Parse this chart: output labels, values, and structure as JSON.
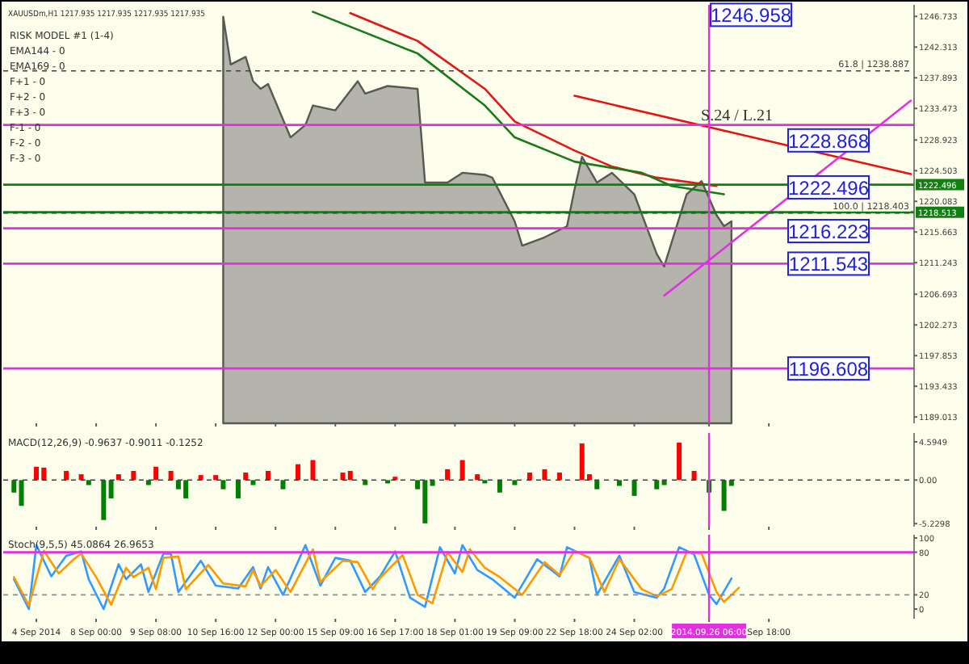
{
  "chart_data": [
    {
      "type": "area",
      "title": "XAUUSDm,H1  1217.935 1217.935 1217.935 1217.935",
      "ylim": [
        1188.1,
        1248.4
      ],
      "tick_labels": "y",
      "categories": [
        null,
        null,
        null,
        null,
        "4 Sep 2014",
        null,
        null,
        null,
        null,
        null,
        null,
        null,
        "8 Sep 00:00",
        null,
        null,
        null,
        null,
        null,
        null,
        null,
        "9 Sep 08:00",
        null,
        null,
        null,
        null,
        null,
        null,
        null,
        "10 Sep 16:00",
        null,
        null,
        null,
        null,
        null,
        null,
        null,
        "12 Sep 00:00",
        null,
        null,
        null,
        null,
        null,
        null,
        null,
        "15 Sep 09:00",
        null,
        null,
        null,
        null,
        null,
        null,
        null,
        "16 Sep 17:00",
        null,
        null,
        null,
        null,
        null,
        null,
        null,
        "18 Sep 01:00",
        null,
        null,
        null,
        null,
        null,
        null,
        null,
        "19 Sep 09:00",
        null,
        null,
        null,
        null,
        null,
        null,
        null,
        "22 Sep 18:00",
        null,
        null,
        null,
        null,
        null,
        null,
        null,
        "24 Sep 02:00",
        null,
        null,
        null,
        null,
        null,
        null,
        null,
        null,
        null,
        "2014.09.26 06:00",
        null,
        null,
        null,
        null,
        null,
        null,
        null,
        "Sep 18:00",
        null,
        null,
        null,
        null,
        null,
        null,
        null,
        null,
        null,
        null,
        null,
        null,
        null,
        null,
        null,
        null,
        null,
        null,
        null
      ],
      "yticks": [
        1246.733,
        1242.313,
        1237.893,
        1233.473,
        1228.923,
        1224.503,
        1220.083,
        1215.663,
        1211.243,
        1206.693,
        1202.273,
        1197.853,
        1193.433,
        1189.013
      ],
      "series": [
        {
          "color": "#b4b4ac",
          "values": [
            null,
            null,
            null,
            null,
            null,
            null,
            null,
            null,
            null,
            null,
            null,
            null,
            null,
            null,
            null,
            null,
            null,
            null,
            null,
            null,
            null,
            null,
            null,
            null,
            null,
            null,
            null,
            null,
            null,
            1246.7,
            1239.8,
            null,
            1240.9,
            1237.4,
            1236.3,
            1237.0,
            null,
            null,
            1229.3,
            null,
            1231.1,
            1233.9,
            null,
            null,
            1233.2,
            null,
            null,
            1237.4,
            1235.6,
            null,
            null,
            1236.7,
            null,
            null,
            null,
            1236.3,
            1222.8,
            null,
            null,
            1222.8,
            null,
            1224.2,
            null,
            null,
            1223.9,
            1223.5,
            null,
            null,
            1217.2,
            1213.7,
            null,
            null,
            1214.9,
            null,
            null,
            1216.5,
            1221.8,
            1226.5,
            null,
            1222.8,
            null,
            1224.2,
            null,
            null,
            1221.1,
            null,
            null,
            1212.5,
            1210.7,
            1214.2,
            null,
            1221.1,
            null,
            1223.0,
            null,
            1218.1,
            1216.5,
            1217.2,
            null,
            null,
            null,
            null,
            null,
            null,
            null,
            null,
            null,
            null,
            null,
            null,
            null,
            null,
            null,
            null,
            null,
            null,
            null,
            null,
            null,
            null,
            null,
            null
          ]
        },
        {
          "type": "line",
          "color": "#e01818",
          "values": [
            null,
            null,
            null,
            null,
            null,
            null,
            null,
            null,
            null,
            null,
            null,
            null,
            null,
            null,
            null,
            null,
            null,
            null,
            null,
            null,
            null,
            null,
            null,
            null,
            null,
            null,
            null,
            null,
            null,
            null,
            null,
            null,
            null,
            null,
            null,
            null,
            null,
            null,
            null,
            null,
            null,
            null,
            null,
            null,
            null,
            null,
            1247.2,
            null,
            null,
            null,
            null,
            null,
            null,
            null,
            null,
            1243.2,
            null,
            null,
            null,
            null,
            null,
            null,
            null,
            null,
            1236.3,
            null,
            null,
            null,
            1231.6,
            null,
            null,
            null,
            null,
            null,
            null,
            null,
            1227.4,
            null,
            null,
            null,
            null,
            1225.1,
            null,
            null,
            null,
            null,
            null,
            1223.5,
            null,
            null,
            null,
            null,
            null,
            null,
            null,
            1222.3,
            null,
            null,
            null,
            null,
            null,
            null,
            null,
            null,
            null,
            null,
            null,
            null,
            null,
            null,
            null,
            null,
            null,
            null,
            null,
            null,
            null,
            null,
            null,
            null,
            null,
            null
          ]
        },
        {
          "type": "line",
          "color": "#1a7a1a",
          "values": [
            null,
            null,
            null,
            null,
            null,
            null,
            null,
            null,
            null,
            null,
            null,
            null,
            null,
            null,
            null,
            null,
            null,
            null,
            null,
            null,
            null,
            null,
            null,
            null,
            null,
            null,
            null,
            null,
            null,
            null,
            null,
            null,
            null,
            null,
            null,
            null,
            null,
            null,
            null,
            null,
            null,
            1247.4,
            null,
            null,
            null,
            null,
            null,
            null,
            null,
            null,
            null,
            null,
            null,
            null,
            null,
            1241.4,
            null,
            null,
            null,
            null,
            null,
            null,
            null,
            null,
            1233.9,
            null,
            null,
            null,
            1229.3,
            null,
            null,
            null,
            null,
            null,
            null,
            null,
            1225.8,
            null,
            null,
            null,
            null,
            null,
            null,
            null,
            null,
            1224.2,
            null,
            null,
            null,
            1222.3,
            null,
            null,
            null,
            null,
            null,
            null,
            1221.1,
            null,
            null,
            null,
            null,
            null,
            null,
            null,
            null,
            null,
            null,
            null,
            null,
            null,
            null,
            null,
            null,
            null,
            null,
            null,
            null,
            null,
            null,
            null,
            null,
            null
          ]
        },
        {
          "type": "line",
          "color": "#e81010",
          "values": [
            null,
            null,
            null,
            null,
            null,
            null,
            null,
            null,
            null,
            null,
            null,
            null,
            null,
            null,
            null,
            null,
            null,
            null,
            null,
            null,
            null,
            null,
            null,
            null,
            null,
            null,
            null,
            null,
            null,
            null,
            null,
            null,
            null,
            null,
            null,
            null,
            null,
            null,
            null,
            null,
            null,
            null,
            null,
            null,
            null,
            null,
            null,
            null,
            null,
            null,
            null,
            null,
            null,
            null,
            null,
            null,
            null,
            null,
            null,
            null,
            null,
            null,
            null,
            null,
            null,
            null,
            null,
            null,
            null,
            null,
            null,
            null,
            null,
            null,
            null,
            null,
            1235.3,
            null,
            null,
            null,
            null,
            null,
            null,
            null,
            null,
            null,
            null,
            null,
            null,
            null,
            null,
            null,
            null,
            null,
            null,
            null,
            null,
            null,
            null,
            null,
            null,
            null,
            null,
            null,
            null,
            null,
            null,
            null,
            null,
            null,
            null,
            null,
            null,
            null,
            null,
            null,
            null,
            null,
            null,
            null,
            null,
            1224.0
          ]
        },
        {
          "type": "line",
          "color": "#e030e0",
          "values": [
            null,
            null,
            null,
            null,
            null,
            null,
            null,
            null,
            null,
            null,
            null,
            null,
            null,
            null,
            null,
            null,
            null,
            null,
            null,
            null,
            null,
            null,
            null,
            null,
            null,
            null,
            null,
            null,
            null,
            null,
            null,
            null,
            null,
            null,
            null,
            null,
            null,
            null,
            null,
            null,
            null,
            null,
            null,
            null,
            null,
            null,
            null,
            null,
            null,
            null,
            null,
            null,
            null,
            null,
            null,
            null,
            null,
            null,
            null,
            null,
            null,
            null,
            null,
            null,
            null,
            null,
            null,
            null,
            null,
            null,
            null,
            null,
            null,
            null,
            null,
            null,
            null,
            null,
            null,
            null,
            null,
            null,
            null,
            null,
            null,
            null,
            null,
            null,
            1206.5,
            null,
            null,
            null,
            null,
            null,
            null,
            null,
            null,
            null,
            null,
            null,
            null,
            null,
            null,
            null,
            null,
            null,
            null,
            null,
            null,
            null,
            null,
            null,
            null,
            null,
            null,
            null,
            null,
            null,
            null,
            null,
            null,
            1234.6
          ]
        }
      ],
      "ref_lines": [
        {
          "axis": "y",
          "value": 1238.887,
          "label": "61.8 | 1238.887",
          "color": "#404040",
          "line_style": "dashed"
        },
        {
          "axis": "y",
          "value": 1231.1,
          "color": "#e030e0"
        },
        {
          "axis": "y",
          "value": 1222.496,
          "label": "1222.496",
          "color": "#108010"
        },
        {
          "axis": "y",
          "value": 1218.513,
          "label": "1218.513",
          "color": "#108010"
        },
        {
          "axis": "y",
          "value": 1218.403,
          "label": "100.0 | 1218.403",
          "color": "#404040",
          "line_style": "dashed"
        },
        {
          "axis": "y",
          "value": 1216.2,
          "color": "#e030e0"
        },
        {
          "axis": "y",
          "value": 1211.1,
          "color": "#e030e0"
        },
        {
          "axis": "y",
          "value": 1196.0,
          "color": "#e030e0"
        },
        {
          "axis": "x",
          "value": "2014.09.26 06:00",
          "color": "#e030e0"
        }
      ],
      "annotations": [
        "RISK MODEL #1 (1-4)",
        "EMA144 - 0",
        "EMA169 - 0",
        "F+1 - 0",
        "F+2 - 0",
        "F+3 - 0",
        "F-1 - 0",
        "F-2 - 0",
        "F-3 - 0",
        {
          "text": "S.24 / L.21",
          "x": "2014.09.26 06:00",
          "y": 1230.8
        },
        {
          "text": "1246.958",
          "x": "2014.09.26 06:00",
          "y": 1246.958
        },
        "1228.868",
        {
          "text": "1222.496",
          "y": 1222.1
        },
        {
          "text": "1216.223",
          "y": 1215.8
        },
        {
          "text": "1211.543",
          "y": 1211.1
        },
        {
          "text": "1196.608",
          "y": 1196.0
        }
      ]
    },
    {
      "type": "bar",
      "title": "MACD(12,26,9) -0.9637 -0.9011 -0.1252",
      "ylim": [
        -5.6,
        5.66
      ],
      "tick_labels": "y",
      "categories": [
        null,
        null,
        null,
        null,
        "4 Sep 2014",
        null,
        null,
        null,
        null,
        null,
        null,
        null,
        "8 Sep 00:00",
        null,
        null,
        null,
        null,
        null,
        null,
        null,
        "9 Sep 08:00",
        null,
        null,
        null,
        null,
        null,
        null,
        null,
        "10 Sep 16:00",
        null,
        null,
        null,
        null,
        null,
        null,
        null,
        "12 Sep 00:00",
        null,
        null,
        null,
        null,
        null,
        null,
        null,
        "15 Sep 09:00",
        null,
        null,
        null,
        null,
        null,
        null,
        null,
        "16 Sep 17:00",
        null,
        null,
        null,
        null,
        null,
        null,
        null,
        "18 Sep 01:00",
        null,
        null,
        null,
        null,
        null,
        null,
        null,
        "19 Sep 09:00",
        null,
        null,
        null,
        null,
        null,
        null,
        null,
        "22 Sep 18:00",
        null,
        null,
        null,
        null,
        null,
        null,
        null,
        "24 Sep 02:00",
        null,
        null,
        null,
        null,
        null,
        null,
        null,
        null,
        null,
        "2014.09.26 06:00",
        null,
        null,
        null,
        null,
        null,
        null,
        null,
        "Sep 18:00",
        null,
        null,
        null,
        null,
        null,
        null,
        null,
        null,
        null,
        null,
        null,
        null,
        null,
        null,
        null,
        null,
        null,
        null,
        null
      ],
      "yticks": [
        4.5949,
        {
          "value": 0,
          "label": "0.00"
        },
        -5.2298
      ],
      "series": [
        {
          "color": "#ff0000",
          "values": [
            null,
            null,
            null,
            null,
            1.6,
            1.5,
            null,
            null,
            1.1,
            null,
            0.7,
            null,
            null,
            null,
            null,
            0.7,
            null,
            1.1,
            null,
            null,
            1.6,
            null,
            1.1,
            null,
            null,
            null,
            0.6,
            null,
            0.6,
            null,
            null,
            null,
            0.9,
            null,
            null,
            1.1,
            null,
            null,
            null,
            1.9,
            null,
            2.4,
            null,
            null,
            null,
            0.9,
            1.1,
            null,
            null,
            null,
            null,
            null,
            0.4,
            null,
            null,
            null,
            null,
            null,
            null,
            1.3,
            null,
            2.4,
            null,
            0.7,
            null,
            null,
            null,
            null,
            null,
            null,
            0.9,
            null,
            1.3,
            null,
            0.9,
            null,
            null,
            4.4,
            0.7,
            null,
            null,
            null,
            null,
            null,
            null,
            null,
            null,
            null,
            null,
            null,
            4.5,
            null,
            1.1,
            null,
            null,
            null,
            null,
            null,
            null,
            null,
            null,
            null,
            null,
            null,
            null,
            null,
            null,
            null,
            null,
            null,
            null,
            null,
            null,
            null,
            null,
            null,
            null,
            null,
            null,
            null,
            null,
            null
          ]
        },
        {
          "color": "#008000",
          "values": [
            null,
            -1.5,
            -3.1,
            null,
            null,
            null,
            null,
            null,
            null,
            null,
            null,
            -0.6,
            null,
            -4.8,
            -2.2,
            null,
            null,
            null,
            null,
            -0.6,
            null,
            null,
            null,
            -1.1,
            -2.2,
            null,
            null,
            null,
            null,
            -1.1,
            null,
            -2.2,
            null,
            -0.6,
            null,
            null,
            null,
            -1.1,
            null,
            null,
            null,
            null,
            null,
            null,
            null,
            null,
            null,
            null,
            -0.6,
            null,
            null,
            -0.4,
            null,
            null,
            null,
            -1.1,
            -5.2,
            -0.7,
            null,
            null,
            null,
            null,
            null,
            null,
            -0.4,
            null,
            -1.5,
            null,
            -0.6,
            null,
            null,
            null,
            null,
            null,
            null,
            null,
            null,
            null,
            null,
            -1.1,
            null,
            null,
            -0.7,
            null,
            -1.9,
            null,
            null,
            -1.1,
            -0.6,
            null,
            null,
            null,
            null,
            null,
            -1.5,
            null,
            -3.7,
            -0.7,
            null,
            null,
            null,
            null,
            null,
            null,
            null,
            null,
            null,
            null,
            null,
            null,
            null,
            null,
            null,
            null,
            null,
            null,
            null,
            null,
            null,
            null,
            null,
            null
          ]
        }
      ],
      "ref_lines": [
        {
          "axis": "y",
          "value": 0,
          "color": "#404040",
          "line_style": "dashed"
        },
        {
          "axis": "x",
          "value": "2014.09.26 06:00",
          "color": "#e030e0"
        }
      ]
    },
    {
      "type": "line",
      "title": "Stoch(9,5,5) 45.0864 26.9653",
      "ylim": [
        -13.6,
        104.5
      ],
      "categories": [
        null,
        null,
        null,
        null,
        "4 Sep 2014",
        null,
        null,
        null,
        null,
        null,
        null,
        null,
        "8 Sep 00:00",
        null,
        null,
        null,
        null,
        null,
        null,
        null,
        "9 Sep 08:00",
        null,
        null,
        null,
        null,
        null,
        null,
        null,
        "10 Sep 16:00",
        null,
        null,
        null,
        null,
        null,
        null,
        null,
        "12 Sep 00:00",
        null,
        null,
        null,
        null,
        null,
        null,
        null,
        "15 Sep 09:00",
        null,
        null,
        null,
        null,
        null,
        null,
        null,
        "16 Sep 17:00",
        null,
        null,
        null,
        null,
        null,
        null,
        null,
        "18 Sep 01:00",
        null,
        null,
        null,
        null,
        null,
        null,
        null,
        "19 Sep 09:00",
        null,
        null,
        null,
        null,
        null,
        null,
        null,
        "22 Sep 18:00",
        null,
        null,
        null,
        null,
        null,
        null,
        null,
        "24 Sep 02:00",
        null,
        null,
        null,
        null,
        null,
        null,
        null,
        null,
        null,
        "2014.09.26 06:00",
        null,
        null,
        null,
        null,
        null,
        null,
        null,
        "Sep 18:00",
        null,
        null,
        null,
        null,
        null,
        null,
        null,
        null,
        null,
        null,
        null,
        null,
        null,
        null,
        null,
        null,
        null,
        null,
        null
      ],
      "yticks": [
        100,
        80,
        20,
        0
      ],
      "series": [
        {
          "color": "#3399ff",
          "values": [
            null,
            42,
            null,
            0,
            90,
            null,
            46,
            null,
            75,
            null,
            81,
            42,
            null,
            0,
            null,
            63,
            42,
            null,
            63,
            24,
            null,
            78,
            78,
            24,
            null,
            null,
            68,
            null,
            33,
            null,
            null,
            29,
            null,
            59,
            29,
            59,
            null,
            20,
            null,
            null,
            90,
            null,
            33,
            null,
            72,
            null,
            68,
            null,
            24,
            null,
            46,
            null,
            81,
            null,
            16,
            null,
            3,
            null,
            87,
            null,
            50,
            90,
            null,
            55,
            null,
            42,
            null,
            null,
            16,
            null,
            null,
            70,
            null,
            null,
            46,
            87,
            null,
            null,
            72,
            20,
            null,
            null,
            75,
            null,
            24,
            null,
            null,
            16,
            29,
            null,
            87,
            null,
            77,
            null,
            20,
            7,
            null,
            43,
            null,
            null,
            null,
            null,
            null,
            null,
            null,
            null,
            null,
            null,
            null,
            null,
            null,
            null,
            null,
            null,
            null,
            null,
            null,
            null,
            null,
            null,
            null,
            null
          ]
        },
        {
          "color": "#ff9900",
          "values": [
            null,
            45,
            null,
            5,
            null,
            82,
            null,
            50,
            null,
            70,
            78,
            null,
            45,
            null,
            6,
            null,
            58,
            45,
            null,
            58,
            28,
            72,
            null,
            74,
            28,
            null,
            null,
            62,
            null,
            36,
            null,
            null,
            32,
            55,
            32,
            null,
            55,
            null,
            24,
            null,
            null,
            84,
            38,
            null,
            null,
            68,
            null,
            66,
            null,
            28,
            44,
            null,
            null,
            76,
            null,
            20,
            null,
            8,
            null,
            80,
            null,
            52,
            84,
            null,
            58,
            null,
            45,
            null,
            null,
            20,
            null,
            null,
            66,
            null,
            48,
            null,
            82,
            null,
            72,
            null,
            24,
            null,
            70,
            null,
            null,
            28,
            null,
            18,
            null,
            28,
            null,
            80,
            null,
            78,
            null,
            24,
            10,
            null,
            30,
            null,
            null,
            null,
            null,
            null,
            null,
            null,
            null,
            null,
            null,
            null,
            null,
            null,
            null,
            null,
            null,
            null,
            null,
            null,
            null,
            null,
            null,
            null
          ]
        }
      ],
      "ref_lines": [
        {
          "axis": "y",
          "value": 80,
          "color": "#e030e0"
        },
        {
          "axis": "y",
          "value": 20,
          "color": "#909090",
          "line_style": "dashed"
        },
        {
          "axis": "x",
          "value": "2014.09.26 06:00",
          "color": "#e030e0"
        }
      ]
    }
  ]
}
